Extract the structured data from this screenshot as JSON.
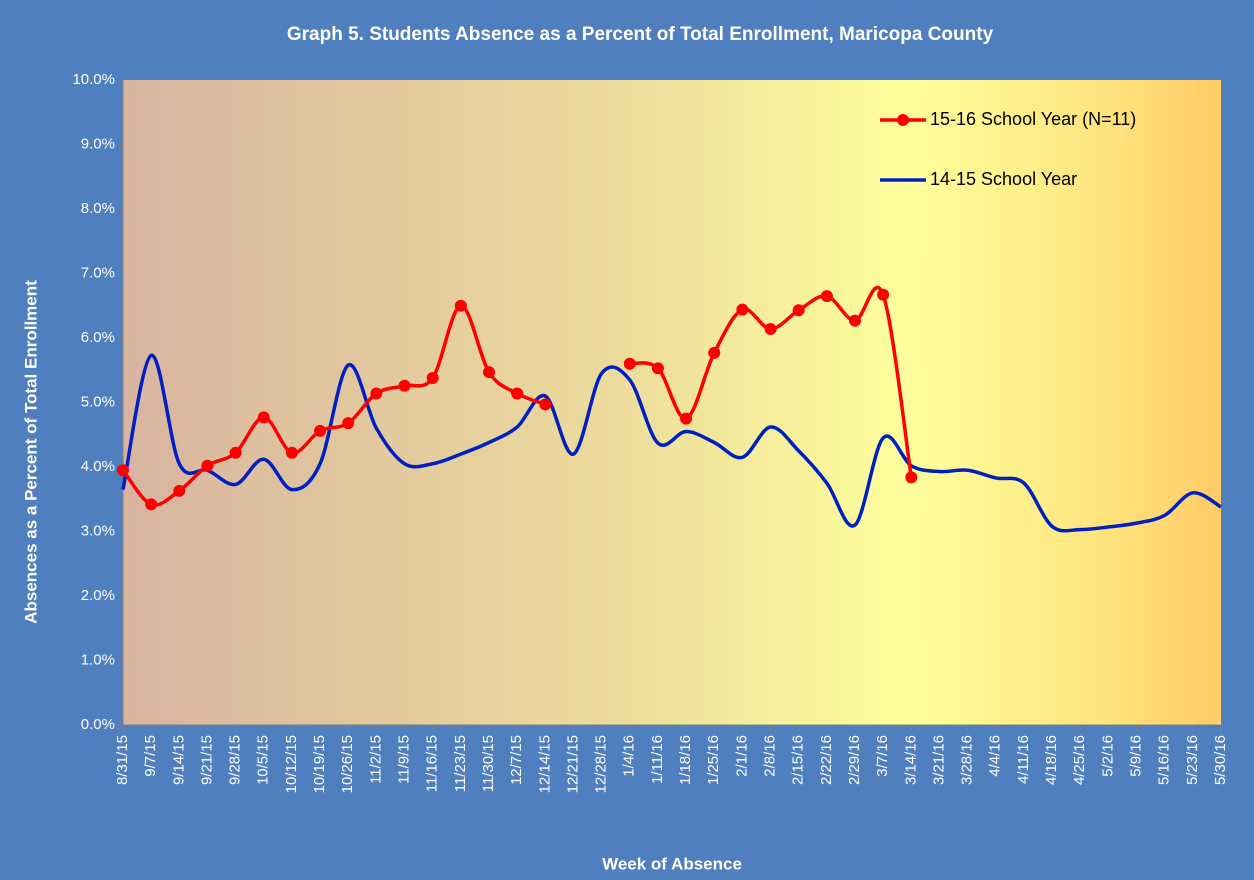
{
  "chart_data": {
    "type": "line",
    "title": "Graph 5. Students Absence as a Percent of Total Enrollment,  Maricopa County",
    "x_label": "Week of Absence",
    "y_label": "Absences as a Percent of Total Enrollment",
    "categories": [
      "8/31/15",
      "9/7/15",
      "9/14/15",
      "9/21/15",
      "9/28/15",
      "10/5/15",
      "10/12/15",
      "10/19/15",
      "10/26/15",
      "11/2/15",
      "11/9/15",
      "11/16/15",
      "11/23/15",
      "11/30/15",
      "12/7/15",
      "12/14/15",
      "12/21/15",
      "12/28/15",
      "1/4/16",
      "1/11/16",
      "1/18/16",
      "1/25/16",
      "2/1/16",
      "2/8/16",
      "2/15/16",
      "2/22/16",
      "2/29/16",
      "3/7/16",
      "3/14/16",
      "3/21/16",
      "3/28/16",
      "4/4/16",
      "4/11/16",
      "4/18/16",
      "4/25/16",
      "5/2/16",
      "5/9/16",
      "5/16/16",
      "5/23/16",
      "5/30/16"
    ],
    "series": [
      {
        "name": "15-16 School Year (N=11)",
        "color": "#ff0000",
        "markers": true,
        "values": [
          3.95,
          3.42,
          3.63,
          4.02,
          4.22,
          4.77,
          4.22,
          4.56,
          4.68,
          5.14,
          5.26,
          5.38,
          6.5,
          5.47,
          5.14,
          4.97,
          null,
          null,
          5.6,
          5.53,
          4.75,
          5.77,
          6.44,
          6.14,
          6.43,
          6.65,
          6.27,
          6.67,
          3.84,
          null,
          null,
          null,
          null,
          null,
          null,
          null,
          null,
          null,
          null,
          null
        ]
      },
      {
        "name": "14-15 School Year",
        "color": "#0020c0",
        "markers": false,
        "values": [
          3.65,
          5.73,
          4.05,
          3.95,
          3.73,
          4.12,
          3.65,
          4.05,
          5.58,
          4.6,
          4.05,
          4.05,
          4.2,
          4.38,
          4.62,
          5.1,
          4.2,
          5.45,
          5.35,
          4.37,
          4.55,
          4.38,
          4.15,
          4.62,
          4.25,
          3.75,
          3.1,
          4.45,
          4.02,
          3.93,
          3.95,
          3.83,
          3.75,
          3.08,
          3.03,
          3.07,
          3.13,
          3.25,
          3.6,
          3.38
        ]
      }
    ],
    "ylim": [
      0,
      10
    ],
    "yticks": [
      {
        "value": 0,
        "label": "0.0%"
      },
      {
        "value": 1,
        "label": "1.0%"
      },
      {
        "value": 2,
        "label": "2.0%"
      },
      {
        "value": 3,
        "label": "3.0%"
      },
      {
        "value": 4,
        "label": "4.0%"
      },
      {
        "value": 5,
        "label": "5.0%"
      },
      {
        "value": 6,
        "label": "6.0%"
      },
      {
        "value": 7,
        "label": "7.0%"
      },
      {
        "value": 8,
        "label": "8.0%"
      },
      {
        "value": 9,
        "label": "9.0%"
      },
      {
        "value": 10,
        "label": "10.0%"
      }
    ],
    "legend": "upper right"
  }
}
